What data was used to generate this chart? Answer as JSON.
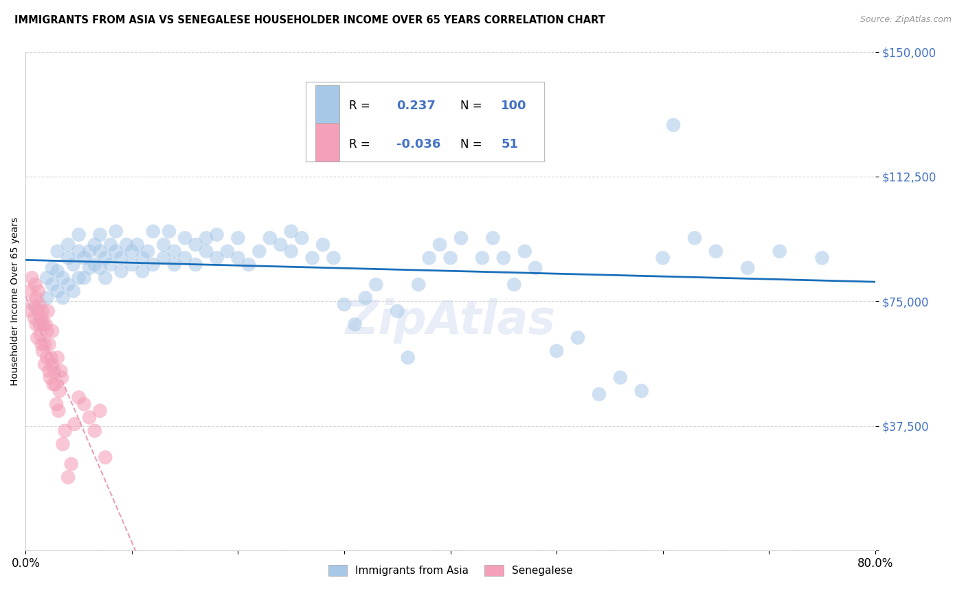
{
  "title": "IMMIGRANTS FROM ASIA VS SENEGALESE HOUSEHOLDER INCOME OVER 65 YEARS CORRELATION CHART",
  "source": "Source: ZipAtlas.com",
  "ylabel": "Householder Income Over 65 years",
  "x_min": 0.0,
  "x_max": 0.8,
  "y_min": 0,
  "y_max": 150000,
  "y_ticks": [
    0,
    37500,
    75000,
    112500,
    150000
  ],
  "y_tick_labels": [
    "",
    "$37,500",
    "$75,000",
    "$112,500",
    "$150,000"
  ],
  "x_ticks": [
    0.0,
    0.1,
    0.2,
    0.3,
    0.4,
    0.5,
    0.6,
    0.7,
    0.8
  ],
  "watermark": "ZipAtlas",
  "blue_color": "#a8c8e8",
  "pink_color": "#f4a0b8",
  "blue_line_color": "#1a6fba",
  "pink_line_color": "#e8a0b8",
  "ytick_color": "#4472c4",
  "legend_blue_color": "#a8c8e8",
  "legend_pink_color": "#f4a0b8",
  "legend_text_color": "#4472c4",
  "asia_x": [
    0.01,
    0.015,
    0.02,
    0.02,
    0.025,
    0.025,
    0.03,
    0.03,
    0.03,
    0.035,
    0.035,
    0.04,
    0.04,
    0.04,
    0.045,
    0.045,
    0.05,
    0.05,
    0.05,
    0.055,
    0.055,
    0.06,
    0.06,
    0.065,
    0.065,
    0.07,
    0.07,
    0.07,
    0.075,
    0.075,
    0.08,
    0.08,
    0.085,
    0.085,
    0.09,
    0.09,
    0.095,
    0.1,
    0.1,
    0.105,
    0.11,
    0.11,
    0.115,
    0.12,
    0.12,
    0.13,
    0.13,
    0.135,
    0.14,
    0.14,
    0.15,
    0.15,
    0.16,
    0.16,
    0.17,
    0.17,
    0.18,
    0.18,
    0.19,
    0.2,
    0.2,
    0.21,
    0.22,
    0.23,
    0.24,
    0.25,
    0.25,
    0.26,
    0.27,
    0.28,
    0.29,
    0.3,
    0.31,
    0.32,
    0.33,
    0.35,
    0.36,
    0.37,
    0.38,
    0.39,
    0.4,
    0.41,
    0.43,
    0.44,
    0.45,
    0.46,
    0.47,
    0.48,
    0.5,
    0.52,
    0.54,
    0.56,
    0.58,
    0.6,
    0.63,
    0.65,
    0.68,
    0.71,
    0.61,
    0.75
  ],
  "asia_y": [
    73000,
    68000,
    76000,
    82000,
    80000,
    85000,
    78000,
    84000,
    90000,
    82000,
    76000,
    88000,
    80000,
    92000,
    86000,
    78000,
    90000,
    82000,
    95000,
    88000,
    82000,
    90000,
    85000,
    92000,
    86000,
    90000,
    85000,
    95000,
    88000,
    82000,
    92000,
    86000,
    90000,
    96000,
    88000,
    84000,
    92000,
    90000,
    86000,
    92000,
    88000,
    84000,
    90000,
    96000,
    86000,
    92000,
    88000,
    96000,
    90000,
    86000,
    94000,
    88000,
    92000,
    86000,
    90000,
    94000,
    88000,
    95000,
    90000,
    94000,
    88000,
    86000,
    90000,
    94000,
    92000,
    96000,
    90000,
    94000,
    88000,
    92000,
    88000,
    74000,
    68000,
    76000,
    80000,
    72000,
    58000,
    80000,
    88000,
    92000,
    88000,
    94000,
    88000,
    94000,
    88000,
    80000,
    90000,
    85000,
    60000,
    64000,
    47000,
    52000,
    48000,
    88000,
    94000,
    90000,
    85000,
    90000,
    128000,
    88000
  ],
  "senegal_x": [
    0.004,
    0.005,
    0.006,
    0.007,
    0.008,
    0.009,
    0.01,
    0.01,
    0.011,
    0.012,
    0.012,
    0.013,
    0.013,
    0.014,
    0.015,
    0.015,
    0.016,
    0.016,
    0.017,
    0.018,
    0.018,
    0.019,
    0.02,
    0.02,
    0.021,
    0.022,
    0.022,
    0.023,
    0.024,
    0.025,
    0.025,
    0.026,
    0.027,
    0.028,
    0.029,
    0.03,
    0.031,
    0.032,
    0.033,
    0.034,
    0.035,
    0.037,
    0.04,
    0.043,
    0.046,
    0.05,
    0.055,
    0.06,
    0.065,
    0.07,
    0.075
  ],
  "senegal_y": [
    78000,
    72000,
    82000,
    74000,
    70000,
    80000,
    68000,
    76000,
    64000,
    78000,
    72000,
    68000,
    74000,
    65000,
    70000,
    62000,
    72000,
    60000,
    68000,
    62000,
    56000,
    68000,
    58000,
    66000,
    72000,
    62000,
    54000,
    52000,
    58000,
    66000,
    56000,
    50000,
    54000,
    50000,
    44000,
    58000,
    42000,
    48000,
    54000,
    52000,
    32000,
    36000,
    22000,
    26000,
    38000,
    46000,
    44000,
    40000,
    36000,
    42000,
    28000
  ]
}
